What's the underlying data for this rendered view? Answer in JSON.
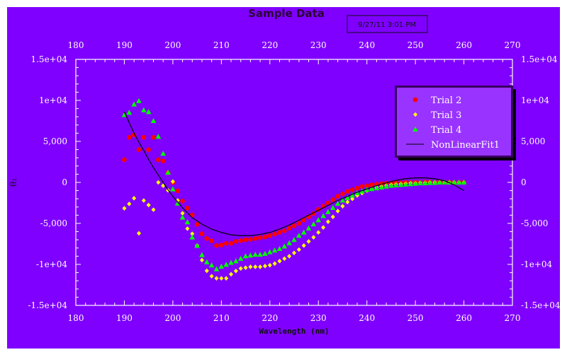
{
  "chart_data": {
    "type": "scatter",
    "title": "Sample Data",
    "timestamp": "9/27/11 3:01 PM",
    "xlabel": "Wavelength (nm)",
    "ylabel": "θ₂",
    "xlim": [
      180,
      270
    ],
    "ylim": [
      -15000,
      15000
    ],
    "x_ticks": [
      180,
      190,
      200,
      210,
      220,
      230,
      240,
      250,
      260,
      270
    ],
    "y_ticks": [
      15000,
      10000,
      5000,
      0,
      -5000,
      -10000,
      -15000
    ],
    "y_tick_labels": [
      "1.5e+04",
      "1e+04",
      "5,000",
      "0",
      "-5,000",
      "-1e+04",
      "-1.5e+04"
    ],
    "grid": false,
    "legend_position": "top-right",
    "colors": {
      "background": "#7f00ff",
      "legend_fill": "#9933ff",
      "axis": "#ffffff"
    },
    "series": [
      {
        "name": "Trial 2",
        "marker": "circle",
        "color": "#ff0000",
        "x_start": 190,
        "x_step": 1,
        "values": [
          2760,
          5490,
          5780,
          3990,
          5490,
          3990,
          5490,
          2760,
          2610,
          1180,
          -30,
          -1030,
          -2270,
          -3130,
          -3970,
          -5110,
          -6270,
          -6840,
          -7130,
          -7700,
          -7640,
          -7440,
          -7440,
          -7200,
          -7100,
          -7000,
          -6950,
          -6850,
          -6750,
          -6650,
          -6500,
          -6300,
          -6100,
          -5900,
          -5600,
          -5300,
          -5000,
          -4600,
          -4200,
          -3800,
          -3300,
          -2900,
          -2500,
          -2100,
          -1700,
          -1400,
          -1100,
          -900,
          -700,
          -500,
          -400,
          -300,
          -200,
          -150,
          -100,
          -100,
          -50,
          -50,
          0,
          0,
          0,
          0,
          50,
          50,
          0,
          0,
          0,
          0,
          0,
          0,
          0
        ]
      },
      {
        "name": "Trial 3",
        "marker": "diamond",
        "color": "#ffff00",
        "x_start": 190,
        "x_step": 1,
        "values": [
          -3160,
          -2620,
          -1930,
          -6210,
          -2210,
          -2760,
          -3330,
          0,
          -400,
          -970,
          100,
          -2200,
          -3770,
          -5640,
          -6270,
          -7700,
          -9480,
          -10780,
          -11440,
          -11700,
          -11700,
          -11700,
          -11200,
          -10800,
          -10500,
          -10400,
          -10300,
          -10300,
          -10300,
          -10200,
          -10100,
          -9900,
          -9600,
          -9300,
          -9000,
          -8600,
          -8200,
          -7700,
          -7200,
          -6700,
          -6100,
          -5500,
          -4800,
          -4200,
          -3500,
          -2900,
          -2400,
          -2000,
          -1600,
          -1300,
          -1000,
          -800,
          -600,
          -500,
          -400,
          -300,
          -250,
          -200,
          -150,
          -100,
          -100,
          -50,
          -50,
          0,
          0,
          0,
          0,
          0,
          0,
          0,
          0
        ]
      },
      {
        "name": "Trial 4",
        "marker": "triangle",
        "color": "#00ff00",
        "x_start": 190,
        "x_step": 1,
        "values": [
          8220,
          8510,
          9510,
          9940,
          8820,
          8590,
          7500,
          5580,
          3510,
          1210,
          -830,
          -2560,
          -4280,
          -4850,
          -6700,
          -7730,
          -8850,
          -9720,
          -10110,
          -10580,
          -10260,
          -10030,
          -9800,
          -9600,
          -9300,
          -9000,
          -8900,
          -8800,
          -8800,
          -8700,
          -8500,
          -8300,
          -8100,
          -7800,
          -7400,
          -7000,
          -6500,
          -6100,
          -5600,
          -5100,
          -4600,
          -4100,
          -3600,
          -3100,
          -2600,
          -2200,
          -1900,
          -1600,
          -1300,
          -1100,
          -900,
          -800,
          -700,
          -600,
          -500,
          -400,
          -350,
          -300,
          -250,
          -200,
          -150,
          -100,
          -100,
          -50,
          -50,
          0,
          0,
          0,
          0,
          0,
          0
        ]
      },
      {
        "name": "NonLinearFit1",
        "marker": "line",
        "color": "#000000",
        "x": [
          190,
          191,
          192,
          193,
          194,
          195,
          196,
          197,
          198,
          199,
          200,
          202,
          204,
          206,
          208,
          210,
          212,
          214,
          216,
          218,
          220,
          222,
          224,
          226,
          228,
          230,
          232,
          234,
          236,
          238,
          240,
          242,
          244,
          246,
          248,
          250,
          252,
          254,
          256,
          258,
          260
        ],
        "values": [
          8600,
          7300,
          6000,
          4900,
          3900,
          2800,
          1800,
          900,
          0,
          -900,
          -1700,
          -3100,
          -4300,
          -5100,
          -5700,
          -6100,
          -6400,
          -6500,
          -6500,
          -6350,
          -6100,
          -5700,
          -5200,
          -4600,
          -4000,
          -3400,
          -2800,
          -2200,
          -1700,
          -1200,
          -800,
          -400,
          -50,
          250,
          450,
          550,
          550,
          450,
          200,
          -300,
          -1000
        ]
      }
    ]
  }
}
